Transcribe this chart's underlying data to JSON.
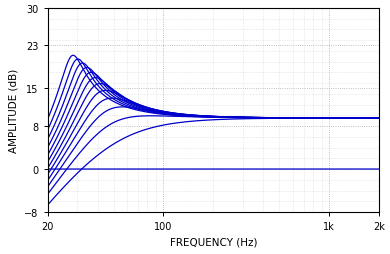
{
  "xlabel": "FREQUENCY (Hz)",
  "ylabel": "AMPLITUDE (dB)",
  "xlim": [
    20,
    2000
  ],
  "ylim": [
    -8,
    30
  ],
  "yticks": [
    -8,
    0,
    8,
    15,
    23,
    30
  ],
  "xtick_vals": [
    20,
    100,
    1000,
    2000
  ],
  "xtick_labels": [
    "20",
    "100",
    "1k",
    "2k"
  ],
  "line_color": "#0000CC",
  "background_color": "#ffffff",
  "num_curves": 12,
  "f0_start": 28,
  "f0_end": 48,
  "Q_start": 3.8,
  "Q_end": 0.55,
  "flat_level_dB": 9.5,
  "shelf_gain_dB": 9.5,
  "label_fontsize": 7.5,
  "tick_fontsize": 7.0
}
